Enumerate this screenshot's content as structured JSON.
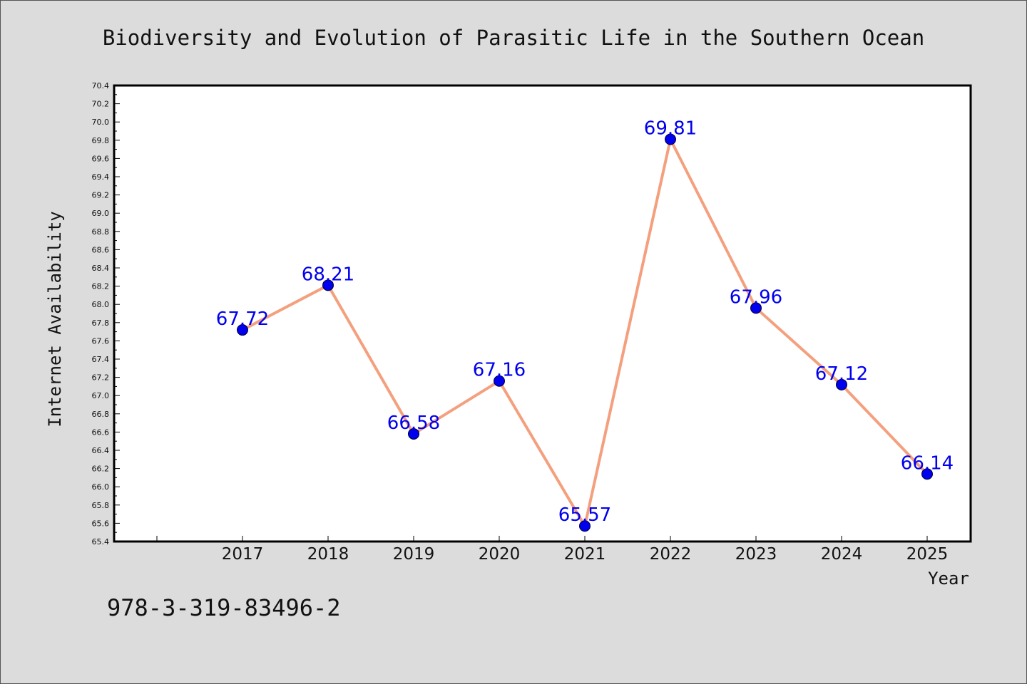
{
  "chart_data": {
    "type": "line",
    "title": "Biodiversity and Evolution of Parasitic Life in the Southern Ocean",
    "xlabel": "Year",
    "ylabel": "Internet Availability",
    "categories": [
      "2017",
      "2018",
      "2019",
      "2020",
      "2021",
      "2022",
      "2023",
      "2024",
      "2025"
    ],
    "series": [
      {
        "values": [
          67.72,
          68.21,
          66.58,
          67.16,
          65.57,
          69.81,
          67.96,
          67.12,
          66.14
        ],
        "data_labels": [
          "67.72",
          "68.21",
          "66.58",
          "67.16",
          "65.57",
          "69.81",
          "67.96",
          "67.12",
          "66.14"
        ]
      }
    ],
    "ylim": [
      65.4,
      70.4
    ],
    "y_ticks": [
      "65.4",
      "65.6",
      "65.8",
      "66.0",
      "66.2",
      "66.4",
      "66.6",
      "66.8",
      "67.0",
      "67.2",
      "67.4",
      "67.6",
      "67.8",
      "68.0",
      "68.2",
      "68.4",
      "68.6",
      "68.8",
      "69.0",
      "69.2",
      "69.4",
      "69.6",
      "69.8",
      "70.0",
      "70.2",
      "70.4"
    ],
    "grid": false,
    "legend": "none",
    "colors": {
      "line": "#f4a07e",
      "marker": "#0000ee",
      "label": "#0000ee",
      "background": "#dcdcdc",
      "plot_background": "#ffffff"
    }
  },
  "footer": {
    "isbn": "978-3-319-83496-2"
  }
}
